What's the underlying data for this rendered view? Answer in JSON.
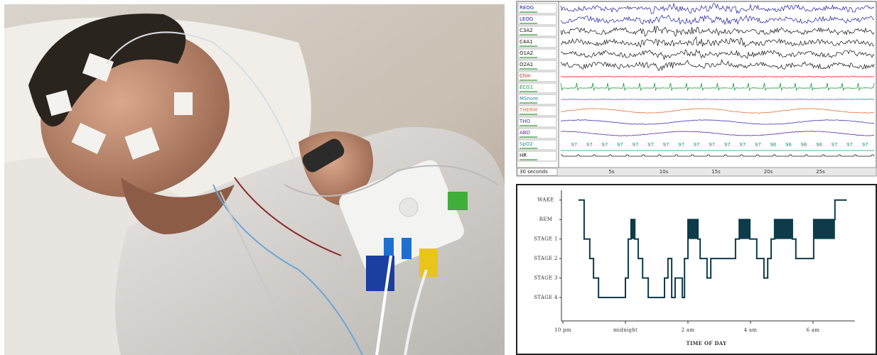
{
  "psg": {
    "channels": [
      {
        "label": "REOG",
        "color": "#1f1fa0",
        "kind": "eeg"
      },
      {
        "label": "LEOG",
        "color": "#1f1fa0",
        "kind": "eeg"
      },
      {
        "label": "C3A2",
        "color": "#111111",
        "kind": "eeg"
      },
      {
        "label": "C4A1",
        "color": "#111111",
        "kind": "eeg"
      },
      {
        "label": "O1A2",
        "color": "#111111",
        "kind": "eeg"
      },
      {
        "label": "O2A1",
        "color": "#111111",
        "kind": "eeg"
      },
      {
        "label": "Chin",
        "color": "#c81e1e",
        "kind": "flat"
      },
      {
        "label": "ECG1",
        "color": "#1e9a3c",
        "kind": "ecg"
      },
      {
        "label": "MSnore",
        "color": "#1e8aa0",
        "kind": "flat"
      },
      {
        "label": "THERM",
        "color": "#e0703a",
        "kind": "wave"
      },
      {
        "label": "THO",
        "color": "#3a3ab0",
        "kind": "wave"
      },
      {
        "label": "ABD",
        "color": "#5a2aa0",
        "kind": "wave"
      },
      {
        "label": "SpO2",
        "color": "#1e9a7c",
        "kind": "values"
      },
      {
        "label": "HR",
        "color": "#111111",
        "kind": "hr"
      }
    ],
    "spo2_values": [
      97,
      97,
      97,
      97,
      97,
      97,
      97,
      97,
      97,
      97,
      97,
      97,
      97,
      96,
      96,
      96,
      96,
      97,
      97,
      97
    ],
    "duration": "30 seconds",
    "time_labels": [
      "5s",
      "10s",
      "15s",
      "20s",
      "25s"
    ]
  },
  "chart_data": {
    "type": "step",
    "xlabel": "TIME OF DAY",
    "x": [
      22.52,
      22.68,
      22.86,
      22.98,
      23.14,
      24.0,
      24.09,
      24.18,
      24.3,
      24.41,
      24.55,
      24.73,
      25.25,
      25.36,
      25.48,
      25.59,
      25.82,
      25.89,
      26.0,
      26.32,
      26.39,
      26.61,
      26.73,
      27.52,
      27.64,
      27.98,
      28.2,
      28.43,
      28.55,
      28.66,
      28.77,
      29.34,
      29.45,
      30.02,
      30.7,
      31.05
    ],
    "values": [
      0,
      2,
      3,
      4,
      5,
      4,
      2,
      1,
      2,
      3,
      4,
      5,
      4,
      3,
      5,
      4,
      5,
      3,
      1,
      2,
      3,
      4,
      3,
      2,
      1,
      2,
      3,
      4,
      3,
      2,
      1,
      2,
      3,
      1,
      0,
      0
    ],
    "color": "#0d3b4a",
    "xlim": [
      22,
      31.2
    ],
    "ylim": [
      6.2,
      -0.5
    ],
    "xticks": [
      {
        "value": 22,
        "label": "10 pm"
      },
      {
        "value": 24,
        "label": "midnight"
      },
      {
        "value": 26,
        "label": "2 am"
      },
      {
        "value": 28,
        "label": "4 am"
      },
      {
        "value": 30,
        "label": "6 am"
      }
    ],
    "yticks": [
      {
        "value": 0,
        "label": "WAKE"
      },
      {
        "value": 1,
        "label": "REM"
      },
      {
        "value": 2,
        "label": "STAGE 1"
      },
      {
        "value": 3,
        "label": "STAGE 2"
      },
      {
        "value": 4,
        "label": "STAGE 3"
      },
      {
        "value": 5,
        "label": "STAGE 4"
      }
    ]
  }
}
